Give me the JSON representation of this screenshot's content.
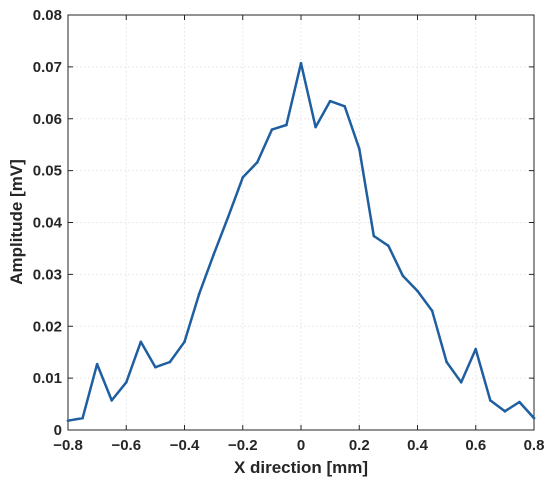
{
  "chart_data": {
    "type": "line",
    "title": "",
    "xlabel": "X direction [mm]",
    "ylabel": "Amplitude [mV]",
    "xlim": [
      -0.8,
      0.8
    ],
    "ylim": [
      0,
      0.08
    ],
    "grid": true,
    "x_ticks": [
      "-0.8",
      "-0.6",
      "-0.4",
      "-0.2",
      "0",
      "0.2",
      "0.4",
      "0.6",
      "0.8"
    ],
    "y_ticks": [
      "0",
      "0.01",
      "0.02",
      "0.03",
      "0.04",
      "0.05",
      "0.06",
      "0.07",
      "0.08"
    ],
    "color": "#1f5fa0",
    "series": [
      {
        "x": [
          -0.8,
          -0.75,
          -0.7,
          -0.65,
          -0.6,
          -0.55,
          -0.5,
          -0.45,
          -0.4,
          -0.35,
          -0.3,
          -0.25,
          -0.2,
          -0.15,
          -0.1,
          -0.05,
          0,
          0.05,
          0.1,
          0.15,
          0.2,
          0.25,
          0.3,
          0.35,
          0.4,
          0.45,
          0.5,
          0.55,
          0.6,
          0.65,
          0.7,
          0.75,
          0.8
        ],
        "y": [
          0.0018,
          0.0023,
          0.0127,
          0.0057,
          0.0092,
          0.017,
          0.0121,
          0.0131,
          0.017,
          0.0262,
          0.0338,
          0.0411,
          0.0487,
          0.0516,
          0.0579,
          0.0588,
          0.0707,
          0.0584,
          0.0634,
          0.0624,
          0.0542,
          0.0374,
          0.0355,
          0.0297,
          0.0268,
          0.023,
          0.0131,
          0.0092,
          0.0156,
          0.0057,
          0.0036,
          0.0054,
          0.0023
        ]
      }
    ]
  }
}
